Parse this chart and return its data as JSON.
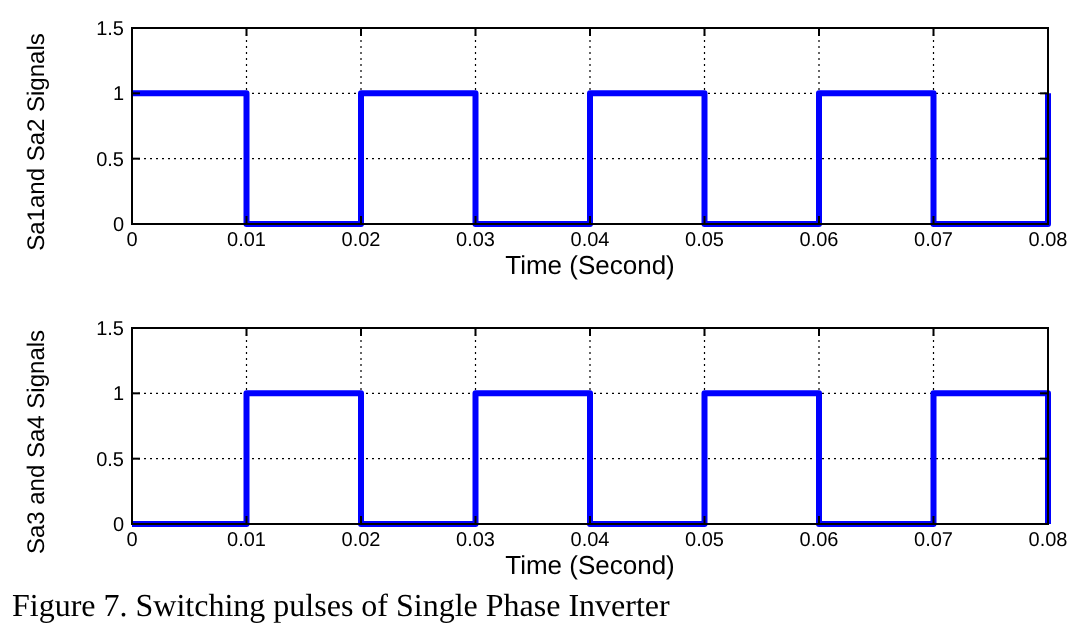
{
  "chart_data": [
    {
      "type": "line",
      "xlabel": "Time (Second)",
      "ylabel": "Sa1and Sa2 Signals",
      "x": [
        0,
        0.01,
        0.01,
        0.02,
        0.02,
        0.03,
        0.03,
        0.04,
        0.04,
        0.05,
        0.05,
        0.06,
        0.06,
        0.07,
        0.07,
        0.08,
        0.08
      ],
      "series": [
        {
          "color": "#0000ff",
          "values": [
            1,
            1,
            0,
            0,
            1,
            1,
            0,
            0,
            1,
            1,
            0,
            0,
            1,
            1,
            0,
            0,
            1
          ]
        }
      ],
      "xlim": [
        0,
        0.08
      ],
      "xticks": [
        0,
        0.01,
        0.02,
        0.03,
        0.04,
        0.05,
        0.06,
        0.07,
        0.08
      ],
      "ylim": [
        0,
        1.5
      ],
      "yticks": [
        0,
        0.5,
        1,
        1.5
      ],
      "grid": true
    },
    {
      "type": "line",
      "xlabel": "Time (Second)",
      "ylabel": "Sa3 and Sa4 Signals",
      "x": [
        0,
        0.01,
        0.01,
        0.02,
        0.02,
        0.03,
        0.03,
        0.04,
        0.04,
        0.05,
        0.05,
        0.06,
        0.06,
        0.07,
        0.07,
        0.08,
        0.08
      ],
      "series": [
        {
          "color": "#0000ff",
          "values": [
            0,
            0,
            1,
            1,
            0,
            0,
            1,
            1,
            0,
            0,
            1,
            1,
            0,
            0,
            1,
            1,
            0
          ]
        }
      ],
      "xlim": [
        0,
        0.08
      ],
      "xticks": [
        0,
        0.01,
        0.02,
        0.03,
        0.04,
        0.05,
        0.06,
        0.07,
        0.08
      ],
      "ylim": [
        0,
        1.5
      ],
      "yticks": [
        0,
        0.5,
        1,
        1.5
      ],
      "grid": true,
      "annotations": [
        "Figure 7. Switching pulses of Single Phase Inverter"
      ]
    }
  ]
}
